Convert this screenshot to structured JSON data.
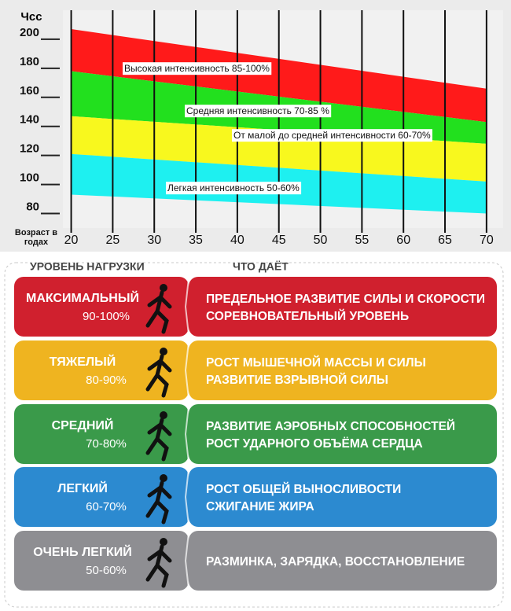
{
  "chart_data": {
    "type": "band",
    "ylabel": "Чсс",
    "xlabel": "Возраст в годах",
    "x": [
      20,
      70
    ],
    "xlim": [
      19,
      72
    ],
    "xticks": [
      20,
      25,
      30,
      35,
      40,
      45,
      50,
      55,
      60,
      65,
      70
    ],
    "ylim": [
      70,
      220
    ],
    "yticks": [
      80,
      100,
      120,
      140,
      160,
      180,
      200
    ],
    "series": [
      {
        "name": "Высокая интенсивность 85-100%",
        "color": "#ff1a1a",
        "high": [
          207,
          166
        ],
        "low": [
          178,
          143
        ]
      },
      {
        "name": "Средняя интенсивность 70-85  %",
        "color": "#22e01e",
        "high": [
          178,
          143
        ],
        "low": [
          147,
          128
        ]
      },
      {
        "name": "От малой до средней интенсивности 60-70%",
        "color": "#f8f81e",
        "high": [
          147,
          128
        ],
        "low": [
          121,
          102
        ]
      },
      {
        "name": "Легкая интенсивность 50-60%",
        "color": "#1ef0f0",
        "high": [
          121,
          102
        ],
        "low": [
          93,
          80
        ]
      }
    ]
  },
  "table": {
    "headers": [
      "УРОВЕНЬ НАГРУЗКИ",
      "ЧТО ДАЁТ"
    ],
    "rows": [
      {
        "level": "МАКСИМАЛЬНЫЙ",
        "range": "90-100%",
        "color": "#d0202e",
        "effect": [
          "ПРЕДЕЛЬНОЕ РАЗВИТИЕ СИЛЫ И СКОРОСТИ",
          "СОРЕВНОВАТЕЛЬНЫЙ УРОВЕНЬ"
        ]
      },
      {
        "level": "ТЯЖЕЛЫЙ",
        "range": "80-90%",
        "color": "#efb420",
        "effect": [
          "РОСТ МЫШЕЧНОЙ МАССЫ И СИЛЫ",
          "РАЗВИТИЕ ВЗРЫВНОЙ СИЛЫ"
        ]
      },
      {
        "level": "СРЕДНИЙ",
        "range": "70-80%",
        "color": "#3a9a4a",
        "effect": [
          "РАЗВИТИЕ АЭРОБНЫХ СПОСОБНОСТЕЙ",
          "РОСТ УДАРНОГО ОБЪЁМА СЕРДЦА"
        ]
      },
      {
        "level": "ЛЕГКИЙ",
        "range": "60-70%",
        "color": "#2c8ad0",
        "effect": [
          "РОСТ ОБЩЕЙ ВЫНОСЛИВОСТИ",
          "СЖИГАНИЕ ЖИРА"
        ]
      },
      {
        "level": "ОЧЕНЬ ЛЕГКИЙ",
        "range": "50-60%",
        "color": "#8e8e92",
        "effect": [
          "РАЗМИНКА, ЗАРЯДКА, ВОССТАНОВЛЕНИЕ"
        ]
      }
    ]
  }
}
